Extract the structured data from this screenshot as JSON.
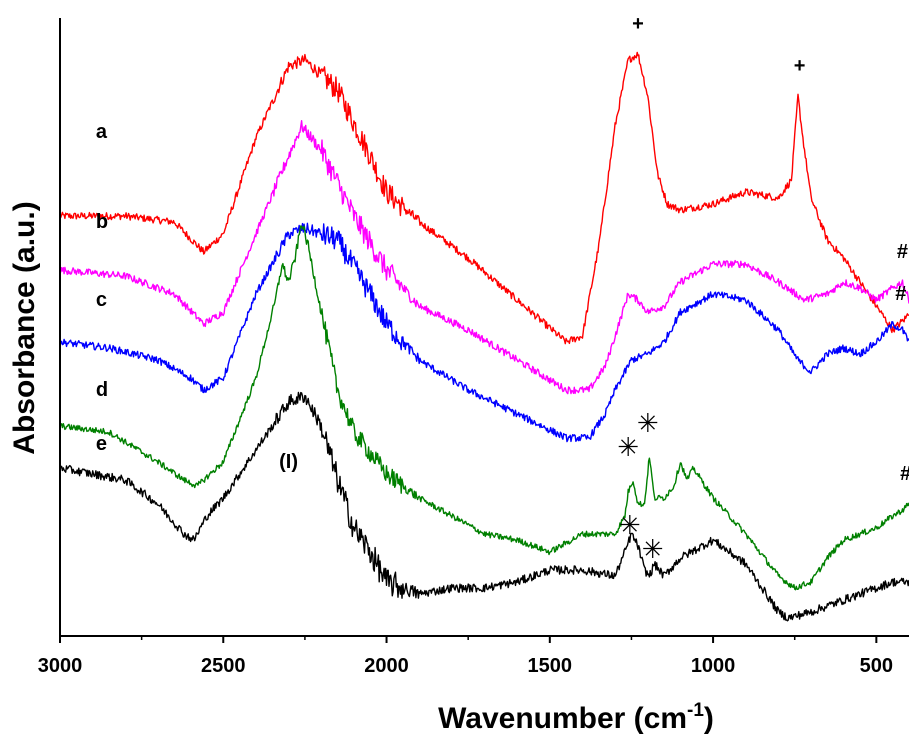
{
  "chart_data": {
    "type": "line",
    "title": "",
    "xlabel": "Wavenumber (cm",
    "xlabel_sup": "-1",
    "xlabel_close": ")",
    "ylabel": "Absorbance (a.u.)",
    "xlim": [
      3000,
      400
    ],
    "x_reversed": true,
    "y_ticks_shown": false,
    "grid": false,
    "x_ticks": [
      3000,
      2500,
      2000,
      1500,
      1000,
      500
    ],
    "x_tick_labels": [
      "3000",
      "2500",
      "2000",
      "1500",
      "1000",
      "500"
    ],
    "series": [
      {
        "label": "a",
        "color": "#ff0000",
        "noise": 0.6,
        "points": [
          [
            3000,
            47
          ],
          [
            2800,
            47
          ],
          [
            2650,
            46
          ],
          [
            2560,
            41
          ],
          [
            2500,
            44
          ],
          [
            2400,
            60
          ],
          [
            2300,
            72
          ],
          [
            2250,
            73
          ],
          [
            2150,
            68
          ],
          [
            2050,
            57
          ],
          [
            2000,
            51
          ],
          [
            1900,
            46
          ],
          [
            1750,
            40
          ],
          [
            1600,
            33
          ],
          [
            1450,
            26
          ],
          [
            1400,
            27
          ],
          [
            1350,
            42
          ],
          [
            1300,
            62
          ],
          [
            1260,
            73
          ],
          [
            1230,
            74
          ],
          [
            1200,
            67
          ],
          [
            1170,
            54
          ],
          [
            1140,
            49
          ],
          [
            1100,
            48
          ],
          [
            1000,
            49
          ],
          [
            900,
            51
          ],
          [
            800,
            50
          ],
          [
            760,
            53
          ],
          [
            740,
            67
          ],
          [
            725,
            60
          ],
          [
            700,
            50
          ],
          [
            650,
            43
          ],
          [
            600,
            40
          ],
          [
            500,
            32
          ],
          [
            450,
            28
          ],
          [
            410,
            30
          ],
          [
            400,
            31
          ]
        ]
      },
      {
        "label": "b",
        "color": "#ff00ff",
        "noise": 0.6,
        "points": [
          [
            3000,
            38
          ],
          [
            2800,
            37
          ],
          [
            2650,
            34
          ],
          [
            2560,
            29
          ],
          [
            2500,
            31
          ],
          [
            2400,
            44
          ],
          [
            2300,
            57
          ],
          [
            2260,
            62
          ],
          [
            2200,
            58
          ],
          [
            2100,
            47
          ],
          [
            2000,
            38
          ],
          [
            1900,
            32
          ],
          [
            1750,
            28
          ],
          [
            1600,
            23
          ],
          [
            1450,
            18
          ],
          [
            1380,
            18
          ],
          [
            1330,
            22
          ],
          [
            1300,
            27
          ],
          [
            1260,
            34
          ],
          [
            1230,
            33
          ],
          [
            1200,
            31
          ],
          [
            1150,
            32
          ],
          [
            1100,
            36
          ],
          [
            1000,
            39
          ],
          [
            900,
            39
          ],
          [
            800,
            36
          ],
          [
            720,
            33
          ],
          [
            650,
            34
          ],
          [
            600,
            36
          ],
          [
            550,
            35
          ],
          [
            500,
            33
          ],
          [
            450,
            35
          ],
          [
            420,
            36
          ],
          [
            400,
            33
          ]
        ]
      },
      {
        "label": "c",
        "color": "#0000ff",
        "noise": 0.6,
        "points": [
          [
            3000,
            26
          ],
          [
            2850,
            25
          ],
          [
            2700,
            23
          ],
          [
            2600,
            20
          ],
          [
            2560,
            18
          ],
          [
            2500,
            20
          ],
          [
            2400,
            34
          ],
          [
            2300,
            44
          ],
          [
            2250,
            45
          ],
          [
            2150,
            43
          ],
          [
            2050,
            34
          ],
          [
            2000,
            29
          ],
          [
            1900,
            23
          ],
          [
            1750,
            18
          ],
          [
            1600,
            14
          ],
          [
            1450,
            10
          ],
          [
            1380,
            10
          ],
          [
            1330,
            14
          ],
          [
            1300,
            18
          ],
          [
            1250,
            23
          ],
          [
            1200,
            24
          ],
          [
            1150,
            26
          ],
          [
            1100,
            31
          ],
          [
            1000,
            34
          ],
          [
            900,
            33
          ],
          [
            800,
            28
          ],
          [
            740,
            23
          ],
          [
            700,
            21
          ],
          [
            650,
            24
          ],
          [
            600,
            25
          ],
          [
            550,
            24
          ],
          [
            500,
            26
          ],
          [
            450,
            29
          ],
          [
            420,
            28
          ],
          [
            400,
            26
          ]
        ]
      },
      {
        "label": "d",
        "color": "#008000",
        "noise": 0.5,
        "points": [
          [
            3000,
            12
          ],
          [
            2850,
            11
          ],
          [
            2700,
            6
          ],
          [
            2620,
            3
          ],
          [
            2580,
            2
          ],
          [
            2500,
            6
          ],
          [
            2400,
            20
          ],
          [
            2340,
            33
          ],
          [
            2320,
            39
          ],
          [
            2300,
            36
          ],
          [
            2280,
            40
          ],
          [
            2260,
            46
          ],
          [
            2240,
            42
          ],
          [
            2200,
            31
          ],
          [
            2150,
            18
          ],
          [
            2100,
            11
          ],
          [
            2000,
            4
          ],
          [
            1900,
            0
          ],
          [
            1800,
            -3
          ],
          [
            1700,
            -6
          ],
          [
            1600,
            -7
          ],
          [
            1500,
            -9
          ],
          [
            1400,
            -6
          ],
          [
            1300,
            -6
          ],
          [
            1270,
            -3
          ],
          [
            1260,
            1
          ],
          [
            1245,
            3
          ],
          [
            1230,
            -1
          ],
          [
            1210,
            -1
          ],
          [
            1195,
            7
          ],
          [
            1180,
            0
          ],
          [
            1150,
            0
          ],
          [
            1120,
            2
          ],
          [
            1100,
            6
          ],
          [
            1080,
            3
          ],
          [
            1060,
            5
          ],
          [
            1000,
            0
          ],
          [
            900,
            -6
          ],
          [
            800,
            -13
          ],
          [
            750,
            -15
          ],
          [
            700,
            -14
          ],
          [
            650,
            -10
          ],
          [
            600,
            -7
          ],
          [
            500,
            -5
          ],
          [
            450,
            -3
          ],
          [
            420,
            -2
          ],
          [
            400,
            -1
          ]
        ]
      },
      {
        "label": "e",
        "color": "#000000",
        "noise": 0.7,
        "points": [
          [
            3000,
            5
          ],
          [
            2900,
            4
          ],
          [
            2800,
            3
          ],
          [
            2700,
            -1
          ],
          [
            2620,
            -6
          ],
          [
            2590,
            -7
          ],
          [
            2550,
            -3
          ],
          [
            2500,
            0
          ],
          [
            2400,
            8
          ],
          [
            2300,
            16
          ],
          [
            2250,
            17
          ],
          [
            2200,
            12
          ],
          [
            2150,
            3
          ],
          [
            2100,
            -5
          ],
          [
            2050,
            -9
          ],
          [
            2000,
            -14
          ],
          [
            1950,
            -15
          ],
          [
            1900,
            -16
          ],
          [
            1800,
            -15
          ],
          [
            1700,
            -15
          ],
          [
            1600,
            -14
          ],
          [
            1500,
            -12
          ],
          [
            1400,
            -12
          ],
          [
            1300,
            -13
          ],
          [
            1270,
            -9
          ],
          [
            1250,
            -6
          ],
          [
            1230,
            -8
          ],
          [
            1210,
            -12
          ],
          [
            1195,
            -13
          ],
          [
            1180,
            -11
          ],
          [
            1150,
            -13
          ],
          [
            1100,
            -10
          ],
          [
            1000,
            -7
          ],
          [
            900,
            -11
          ],
          [
            800,
            -19
          ],
          [
            770,
            -20
          ],
          [
            700,
            -19
          ],
          [
            600,
            -17
          ],
          [
            500,
            -15
          ],
          [
            450,
            -14
          ],
          [
            400,
            -14
          ]
        ]
      }
    ],
    "trace_labels": [
      {
        "text": "a",
        "series": 0,
        "x": 2890,
        "y": 60
      },
      {
        "text": "b",
        "series": 1,
        "x": 2890,
        "y": 45
      },
      {
        "text": "c",
        "series": 2,
        "x": 2890,
        "y": 32
      },
      {
        "text": "d",
        "series": 3,
        "x": 2890,
        "y": 17
      },
      {
        "text": "e",
        "series": 4,
        "x": 2890,
        "y": 8
      }
    ],
    "annotations": [
      {
        "text": "+",
        "kind": "mark",
        "x": 1230,
        "y": 78
      },
      {
        "text": "+",
        "kind": "mark",
        "x": 735,
        "y": 71
      },
      {
        "text": "#",
        "kind": "mark",
        "x": 420,
        "y": 40
      },
      {
        "text": "#",
        "kind": "mark",
        "x": 425,
        "y": 33
      },
      {
        "text": "#",
        "kind": "mark",
        "x": 410,
        "y": 3
      },
      {
        "text": "(I)",
        "kind": "mark",
        "x": 2300,
        "y": 5
      },
      {
        "text": "✳",
        "kind": "star",
        "x": 1260,
        "y": 7
      },
      {
        "text": "✳",
        "kind": "star",
        "x": 1200,
        "y": 11
      },
      {
        "text": "✳",
        "kind": "star",
        "x": 1255,
        "y": -6
      },
      {
        "text": "✳",
        "kind": "star",
        "x": 1185,
        "y": -10
      }
    ],
    "ylim": [
      -23,
      80
    ]
  }
}
